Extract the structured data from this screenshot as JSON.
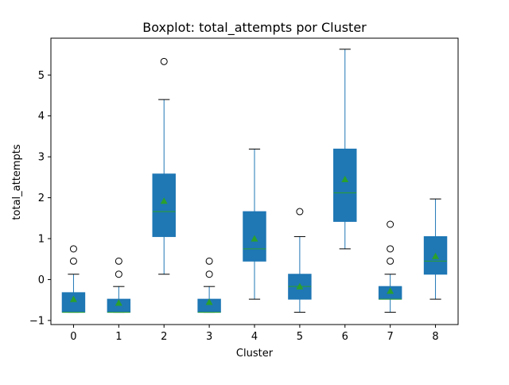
{
  "chart_data": {
    "type": "box",
    "title": "Boxplot: total_attempts por Cluster",
    "xlabel": "Cluster",
    "ylabel": "total_attempts",
    "categories": [
      "0",
      "1",
      "2",
      "3",
      "4",
      "5",
      "6",
      "7",
      "8"
    ],
    "ylim": [
      -1.1,
      5.9
    ],
    "yticks": [
      -1,
      0,
      1,
      2,
      3,
      4,
      5
    ],
    "grid": false,
    "legend": "none",
    "colors": {
      "box_fill": "#1f77b4",
      "box_edge": "#1f77b4",
      "whisker": "#1f77b4",
      "median": "#2ca02c",
      "mean_marker": "#2ca02c",
      "flier_edge": "#000000"
    },
    "boxes": [
      {
        "q1": -0.8,
        "median": -0.8,
        "q3": -0.32,
        "whislo": -0.8,
        "whishi": 0.13,
        "mean": -0.48,
        "fliers": [
          0.45,
          0.75
        ]
      },
      {
        "q1": -0.8,
        "median": -0.8,
        "q3": -0.48,
        "whislo": -0.8,
        "whishi": -0.17,
        "mean": -0.57,
        "fliers": [
          0.13,
          0.45
        ]
      },
      {
        "q1": 1.05,
        "median": 1.66,
        "q3": 2.58,
        "whislo": 0.13,
        "whishi": 4.4,
        "mean": 1.92,
        "fliers": [
          5.33
        ]
      },
      {
        "q1": -0.8,
        "median": -0.8,
        "q3": -0.48,
        "whislo": -0.8,
        "whishi": -0.17,
        "mean": -0.55,
        "fliers": [
          0.13,
          0.45
        ]
      },
      {
        "q1": 0.45,
        "median": 0.75,
        "q3": 1.66,
        "whislo": -0.48,
        "whishi": 3.19,
        "mean": 1.0,
        "fliers": []
      },
      {
        "q1": -0.48,
        "median": -0.17,
        "q3": 0.13,
        "whislo": -0.8,
        "whishi": 1.05,
        "mean": -0.17,
        "fliers": [
          1.66
        ]
      },
      {
        "q1": 1.42,
        "median": 2.12,
        "q3": 3.19,
        "whislo": 0.75,
        "whishi": 5.63,
        "mean": 2.45,
        "fliers": []
      },
      {
        "q1": -0.48,
        "median": -0.48,
        "q3": -0.17,
        "whislo": -0.8,
        "whishi": 0.13,
        "mean": -0.28,
        "fliers": [
          0.45,
          0.75,
          1.35
        ]
      },
      {
        "q1": 0.13,
        "median": 0.45,
        "q3": 1.05,
        "whislo": -0.48,
        "whishi": 1.97,
        "mean": 0.57,
        "fliers": []
      }
    ]
  }
}
